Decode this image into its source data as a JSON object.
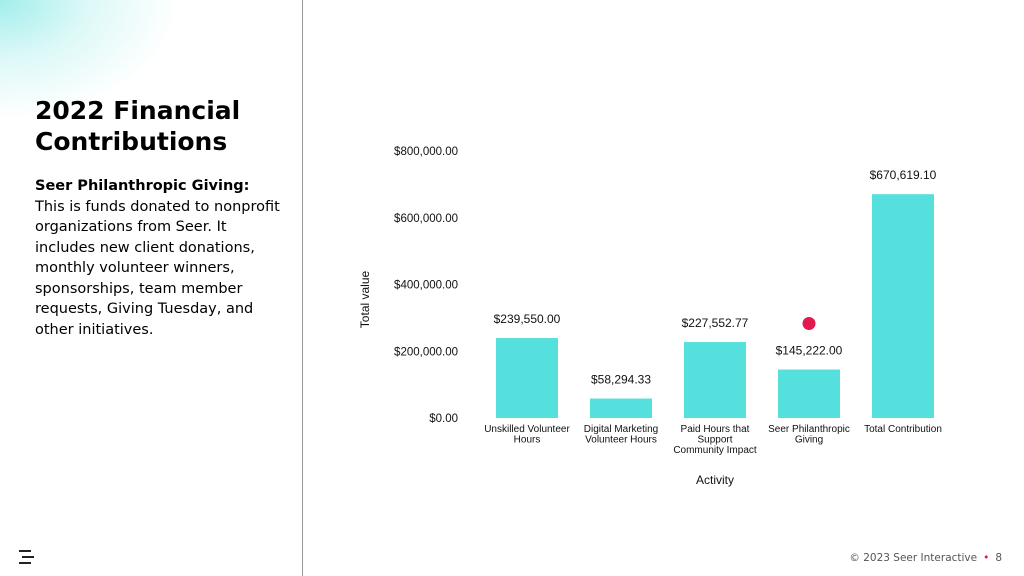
{
  "slide": {
    "title": "2022 Financial Contributions",
    "description_bold": "Seer Philanthropic Giving:",
    "description_text": " This is funds donated to nonprofit organizations from Seer. It includes new client donations, monthly volunteer winners, sponsorships, team member requests, Giving Tuesday, and other initiatives.",
    "footer_copyright": "© 2023 Seer Interactive",
    "footer_separator": "•",
    "page_number": "8",
    "logo_icon": "seer-logo-icon"
  },
  "chart_data": {
    "type": "bar",
    "categories": [
      [
        "Unskilled Volunteer",
        "Hours"
      ],
      [
        "Digital Marketing",
        "Volunteer Hours"
      ],
      [
        "Paid Hours that",
        "Support",
        "Community Impact"
      ],
      [
        "Seer Philanthropic",
        "Giving"
      ],
      [
        "Total Contribution"
      ]
    ],
    "values": [
      239550.0,
      58294.33,
      227552.77,
      145222.0,
      670619.1
    ],
    "data_labels": [
      "$239,550.00",
      "$58,294.33",
      "$227,552.77",
      "$145,222.00",
      "$670,619.10"
    ],
    "ylim": [
      0,
      800000
    ],
    "yticks": [
      0,
      200000,
      400000,
      600000,
      800000
    ],
    "ytick_labels": [
      "$0.00",
      "$200,000.00",
      "$400,000.00",
      "$600,000.00",
      "$800,000.00"
    ],
    "xlabel": "Activity",
    "ylabel": "Total value",
    "bar_color": "#56e0dd",
    "highlight_marker": {
      "category_index": 3,
      "color": "#e3184e"
    }
  }
}
